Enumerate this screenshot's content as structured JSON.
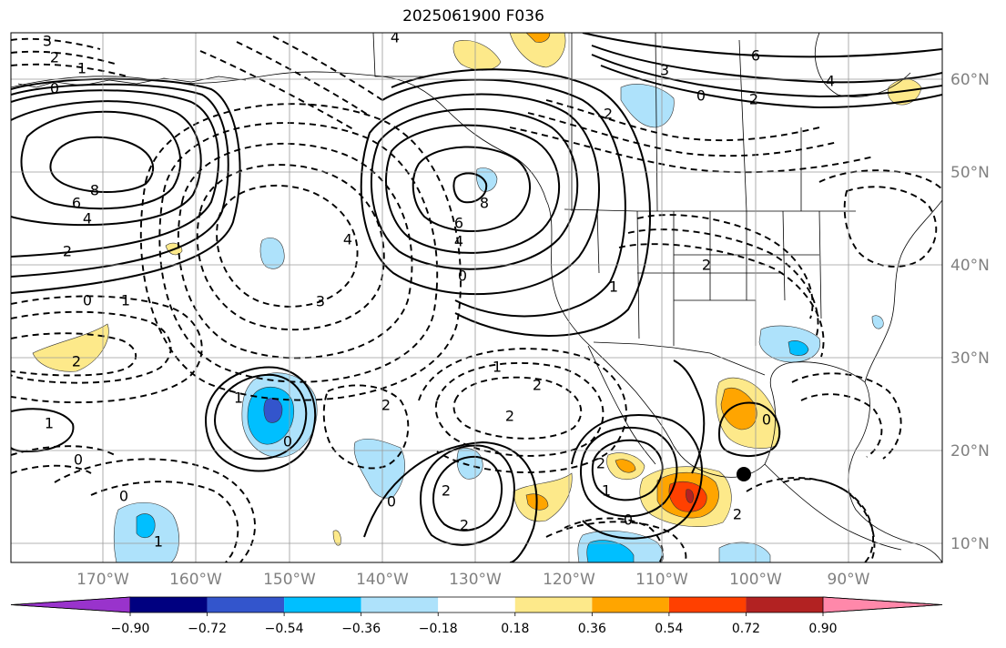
{
  "title": "2025061900 F036",
  "lon_ticks": [
    "170°W",
    "160°W",
    "150°W",
    "140°W",
    "130°W",
    "120°W",
    "110°W",
    "100°W",
    "90°W"
  ],
  "lat_ticks": [
    "60°N",
    "50°N",
    "40°N",
    "30°N",
    "20°N",
    "10°N"
  ],
  "colorbar": {
    "colors": [
      "#9933cc",
      "#000080",
      "#3355cc",
      "#00bfff",
      "#aee2fb",
      "#ffffff",
      "#fde98a",
      "#ffa500",
      "#ff4000",
      "#b22222",
      "#ff88aa"
    ],
    "labels": [
      "−0.90",
      "−0.72",
      "−0.54",
      "−0.36",
      "−0.18",
      "0.18",
      "0.36",
      "0.54",
      "0.72",
      "0.90"
    ]
  },
  "contour_labels": [
    {
      "t": "8"
    },
    {
      "t": "6"
    },
    {
      "t": "4"
    },
    {
      "t": "2"
    },
    {
      "t": "0"
    },
    {
      "t": "1"
    },
    {
      "t": "2"
    },
    {
      "t": "3"
    },
    {
      "t": "4"
    },
    {
      "t": "8"
    },
    {
      "t": "6"
    },
    {
      "t": "4"
    },
    {
      "t": "0"
    },
    {
      "t": "1"
    },
    {
      "t": "2"
    },
    {
      "t": "1"
    },
    {
      "t": "0"
    },
    {
      "t": "2"
    },
    {
      "t": "1"
    },
    {
      "t": "0"
    },
    {
      "t": "2"
    },
    {
      "t": "2"
    },
    {
      "t": "2"
    },
    {
      "t": "2"
    },
    {
      "t": "1"
    },
    {
      "t": "0"
    },
    {
      "t": "0"
    },
    {
      "t": "2"
    },
    {
      "t": "4"
    },
    {
      "t": "6"
    },
    {
      "t": "3"
    },
    {
      "t": "2"
    },
    {
      "t": "0"
    },
    {
      "t": "2"
    },
    {
      "t": "1"
    },
    {
      "t": "0"
    },
    {
      "t": "1"
    },
    {
      "t": "2"
    },
    {
      "t": "0"
    },
    {
      "t": "1"
    },
    {
      "t": "4"
    },
    {
      "t": "3"
    },
    {
      "t": "0"
    },
    {
      "t": "2"
    }
  ]
}
